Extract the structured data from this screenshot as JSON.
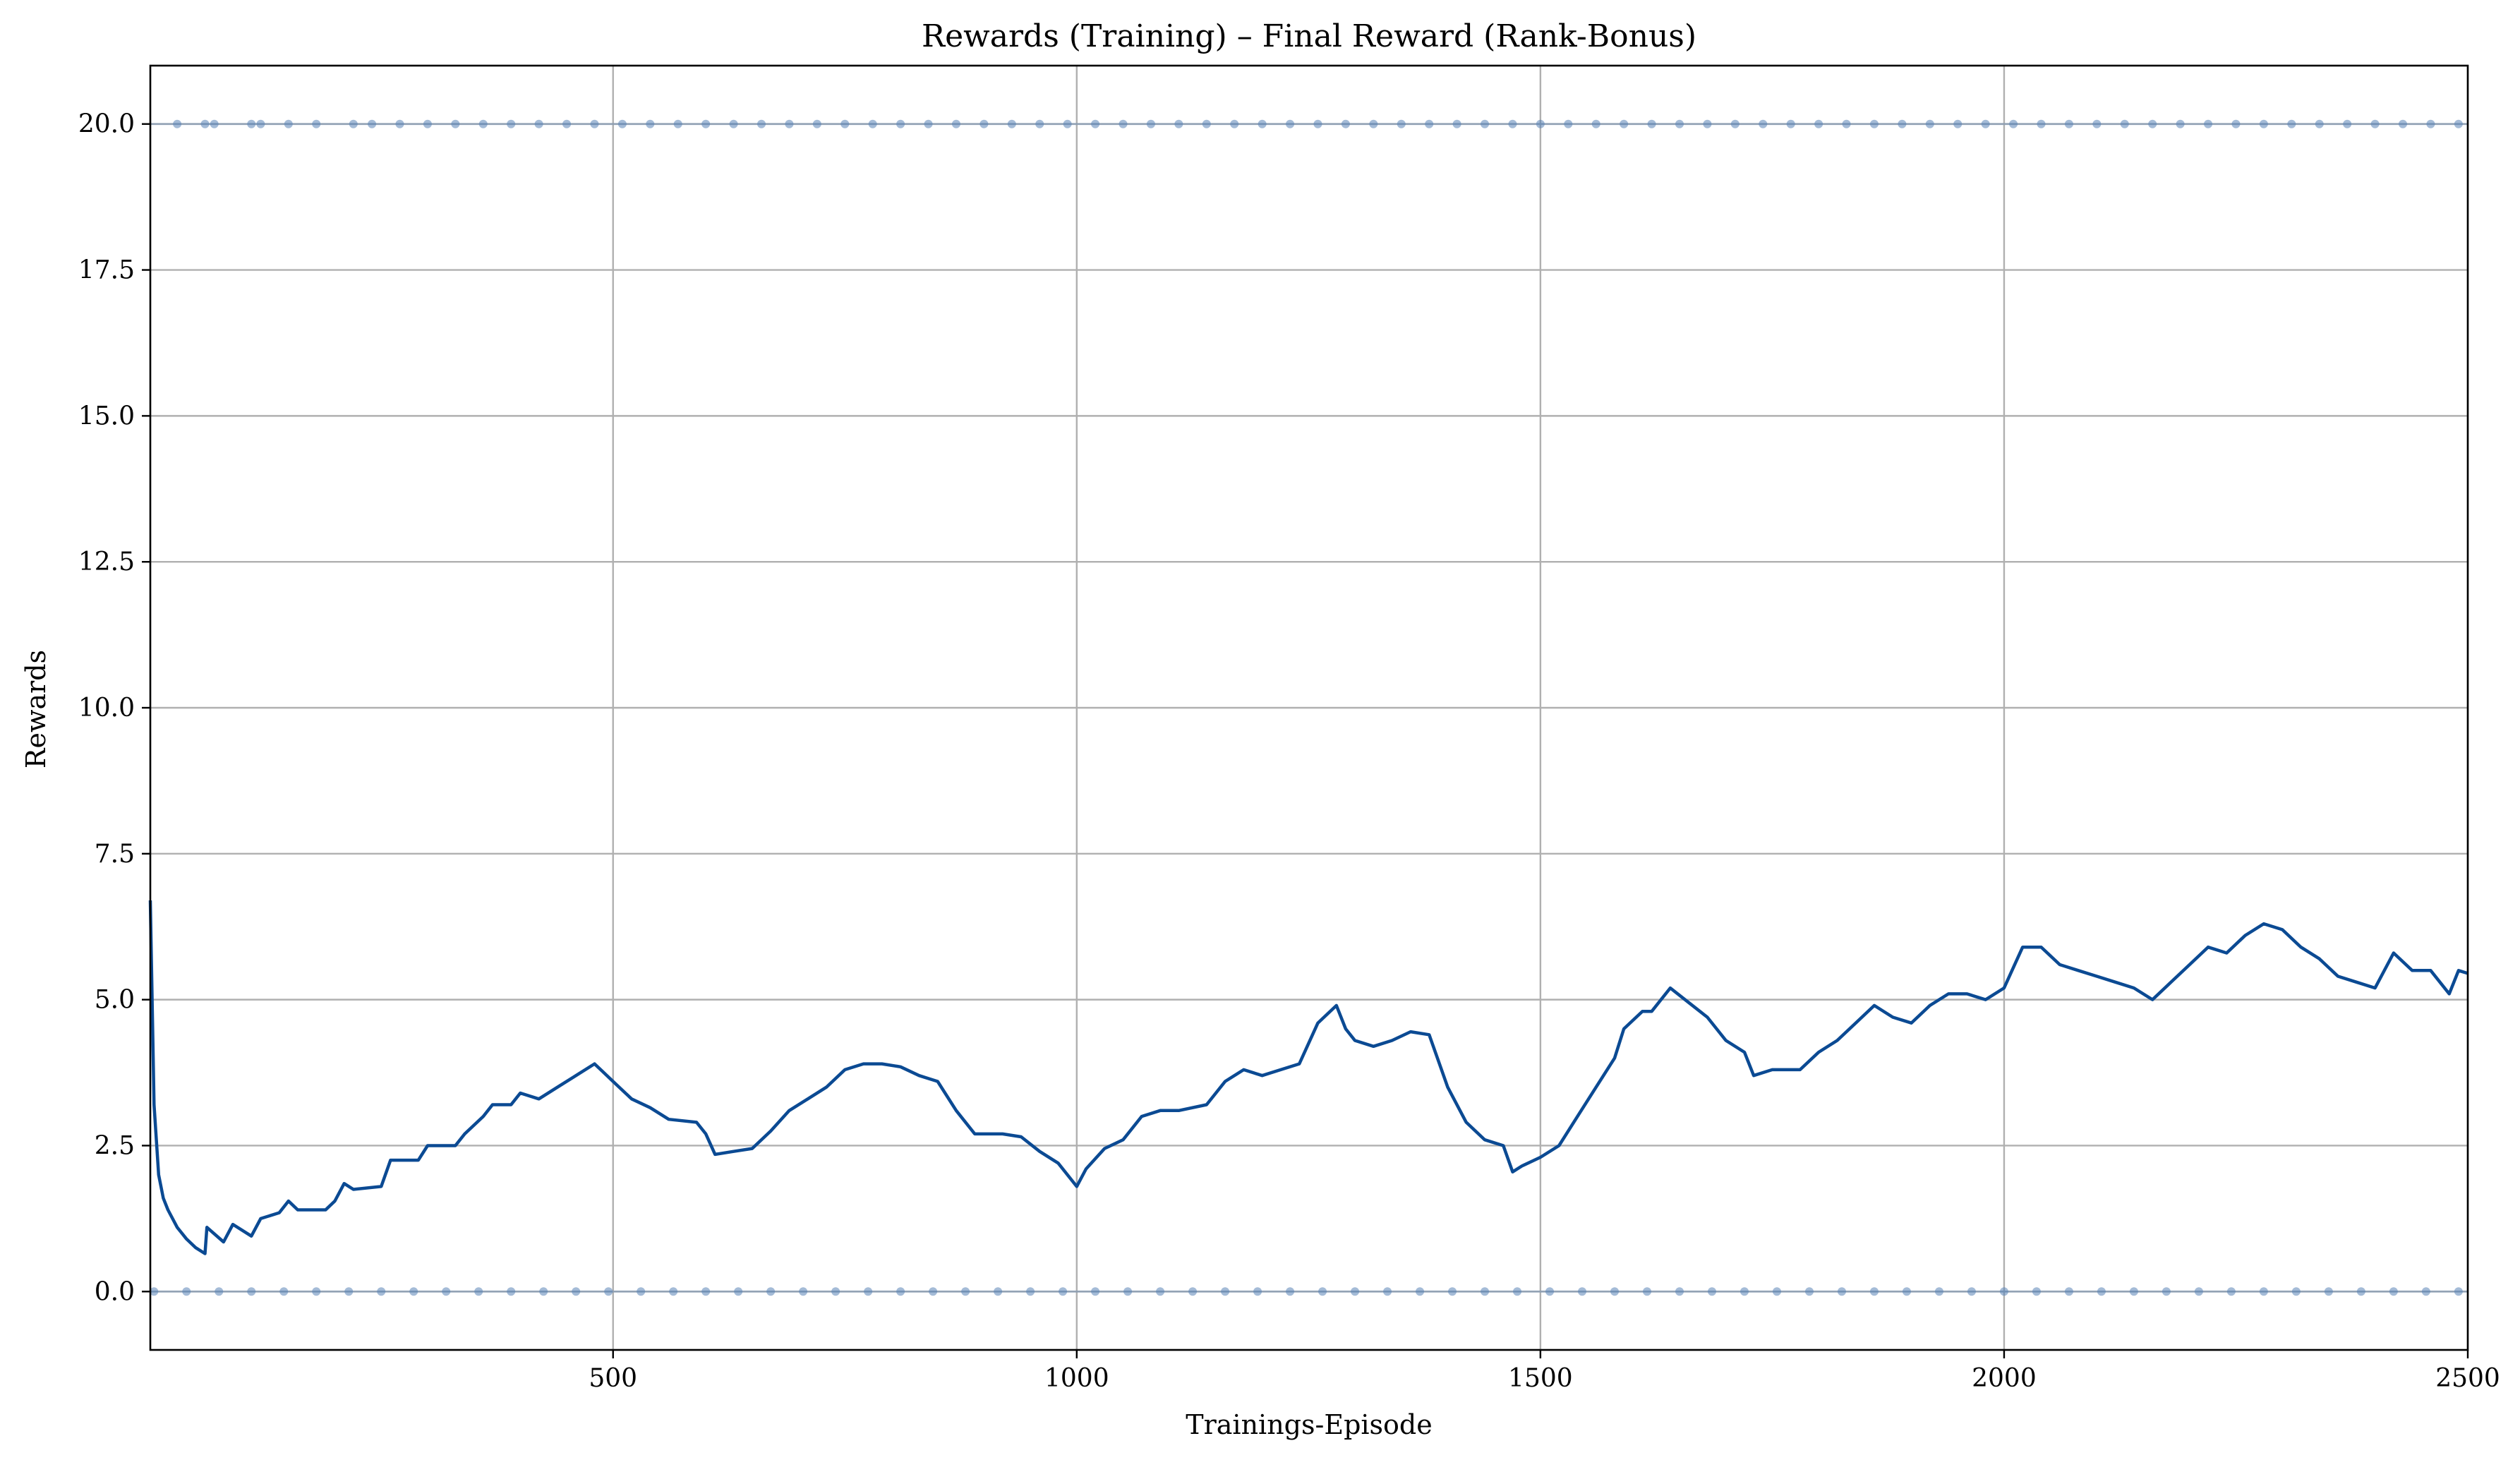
{
  "colors": {
    "line": "#0b4a93",
    "markers": "#5a83b6",
    "grid": "#b0b0b0"
  },
  "chart_data": {
    "type": "line",
    "title": "Rewards (Training) – Final Reward (Rank-Bonus)",
    "xlabel": "Trainings-Episode",
    "ylabel": "Rewards",
    "xlim": [
      1,
      2500
    ],
    "ylim": [
      -1,
      21
    ],
    "x_ticks": [
      500,
      1000,
      1500,
      2000,
      2500
    ],
    "x_tick_labels": [
      "500",
      "1000",
      "1500",
      "2000",
      "2500"
    ],
    "y_ticks": [
      0,
      2.5,
      5,
      7.5,
      10,
      12.5,
      15,
      17.5,
      20
    ],
    "y_tick_labels": [
      "0.0",
      "2.5",
      "5.0",
      "7.5",
      "10.0",
      "12.5",
      "15.0",
      "17.5",
      "20.0"
    ],
    "grid": true,
    "series": [
      {
        "style": "line",
        "points": [
          [
            1,
            6.7
          ],
          [
            5,
            3.2
          ],
          [
            10,
            2.0
          ],
          [
            15,
            1.6
          ],
          [
            20,
            1.4
          ],
          [
            30,
            1.1
          ],
          [
            40,
            0.9
          ],
          [
            50,
            0.75
          ],
          [
            60,
            0.65
          ],
          [
            62,
            1.1
          ],
          [
            80,
            0.85
          ],
          [
            90,
            1.15
          ],
          [
            110,
            0.95
          ],
          [
            120,
            1.25
          ],
          [
            140,
            1.35
          ],
          [
            150,
            1.55
          ],
          [
            160,
            1.4
          ],
          [
            190,
            1.4
          ],
          [
            200,
            1.55
          ],
          [
            210,
            1.85
          ],
          [
            220,
            1.75
          ],
          [
            250,
            1.8
          ],
          [
            260,
            2.25
          ],
          [
            290,
            2.25
          ],
          [
            300,
            2.5
          ],
          [
            330,
            2.5
          ],
          [
            340,
            2.7
          ],
          [
            360,
            3.0
          ],
          [
            370,
            3.2
          ],
          [
            390,
            3.2
          ],
          [
            400,
            3.4
          ],
          [
            420,
            3.3
          ],
          [
            440,
            3.5
          ],
          [
            460,
            3.7
          ],
          [
            480,
            3.9
          ],
          [
            490,
            3.75
          ],
          [
            500,
            3.6
          ],
          [
            520,
            3.3
          ],
          [
            540,
            3.15
          ],
          [
            560,
            2.95
          ],
          [
            590,
            2.9
          ],
          [
            600,
            2.7
          ],
          [
            610,
            2.35
          ],
          [
            630,
            2.4
          ],
          [
            650,
            2.45
          ],
          [
            670,
            2.75
          ],
          [
            690,
            3.1
          ],
          [
            710,
            3.3
          ],
          [
            730,
            3.5
          ],
          [
            750,
            3.8
          ],
          [
            770,
            3.9
          ],
          [
            790,
            3.9
          ],
          [
            810,
            3.85
          ],
          [
            830,
            3.7
          ],
          [
            850,
            3.6
          ],
          [
            870,
            3.1
          ],
          [
            890,
            2.7
          ],
          [
            920,
            2.7
          ],
          [
            940,
            2.65
          ],
          [
            960,
            2.4
          ],
          [
            980,
            2.2
          ],
          [
            1000,
            1.8
          ],
          [
            1010,
            2.1
          ],
          [
            1030,
            2.45
          ],
          [
            1050,
            2.6
          ],
          [
            1070,
            3.0
          ],
          [
            1090,
            3.1
          ],
          [
            1110,
            3.1
          ],
          [
            1140,
            3.2
          ],
          [
            1160,
            3.6
          ],
          [
            1180,
            3.8
          ],
          [
            1200,
            3.7
          ],
          [
            1220,
            3.8
          ],
          [
            1240,
            3.9
          ],
          [
            1260,
            4.6
          ],
          [
            1280,
            4.9
          ],
          [
            1290,
            4.5
          ],
          [
            1300,
            4.3
          ],
          [
            1320,
            4.2
          ],
          [
            1340,
            4.3
          ],
          [
            1360,
            4.45
          ],
          [
            1380,
            4.4
          ],
          [
            1400,
            3.5
          ],
          [
            1420,
            2.9
          ],
          [
            1440,
            2.6
          ],
          [
            1460,
            2.5
          ],
          [
            1470,
            2.05
          ],
          [
            1480,
            2.15
          ],
          [
            1500,
            2.3
          ],
          [
            1520,
            2.5
          ],
          [
            1540,
            3.0
          ],
          [
            1560,
            3.5
          ],
          [
            1580,
            4.0
          ],
          [
            1590,
            4.5
          ],
          [
            1610,
            4.8
          ],
          [
            1620,
            4.8
          ],
          [
            1640,
            5.2
          ],
          [
            1660,
            4.95
          ],
          [
            1680,
            4.7
          ],
          [
            1700,
            4.3
          ],
          [
            1720,
            4.1
          ],
          [
            1730,
            3.7
          ],
          [
            1750,
            3.8
          ],
          [
            1780,
            3.8
          ],
          [
            1800,
            4.1
          ],
          [
            1820,
            4.3
          ],
          [
            1840,
            4.6
          ],
          [
            1860,
            4.9
          ],
          [
            1880,
            4.7
          ],
          [
            1900,
            4.6
          ],
          [
            1920,
            4.9
          ],
          [
            1940,
            5.1
          ],
          [
            1960,
            5.1
          ],
          [
            1980,
            5.0
          ],
          [
            2000,
            5.2
          ],
          [
            2020,
            5.9
          ],
          [
            2040,
            5.9
          ],
          [
            2060,
            5.6
          ],
          [
            2080,
            5.5
          ],
          [
            2100,
            5.4
          ],
          [
            2120,
            5.3
          ],
          [
            2140,
            5.2
          ],
          [
            2160,
            5.0
          ],
          [
            2180,
            5.3
          ],
          [
            2200,
            5.6
          ],
          [
            2220,
            5.9
          ],
          [
            2240,
            5.8
          ],
          [
            2260,
            6.1
          ],
          [
            2280,
            6.3
          ],
          [
            2300,
            6.2
          ],
          [
            2320,
            5.9
          ],
          [
            2340,
            5.7
          ],
          [
            2360,
            5.4
          ],
          [
            2380,
            5.3
          ],
          [
            2400,
            5.2
          ],
          [
            2420,
            5.8
          ],
          [
            2440,
            5.5
          ],
          [
            2460,
            5.5
          ],
          [
            2480,
            5.1
          ],
          [
            2490,
            5.5
          ],
          [
            2500,
            5.45
          ]
        ]
      },
      {
        "style": "markers",
        "y": 20,
        "x": [
          30,
          60,
          70,
          110,
          120,
          150,
          180,
          220,
          240,
          270,
          300,
          330,
          360,
          390,
          420,
          450,
          480,
          510,
          540,
          570,
          600,
          630,
          660,
          690,
          720,
          750,
          780,
          810,
          840,
          870,
          900,
          930,
          960,
          990,
          1020,
          1050,
          1080,
          1110,
          1140,
          1170,
          1200,
          1230,
          1260,
          1290,
          1320,
          1350,
          1380,
          1410,
          1440,
          1470,
          1500,
          1530,
          1560,
          1590,
          1620,
          1650,
          1680,
          1710,
          1740,
          1770,
          1800,
          1830,
          1860,
          1890,
          1920,
          1950,
          1980,
          2010,
          2040,
          2070,
          2100,
          2130,
          2160,
          2190,
          2220,
          2250,
          2280,
          2310,
          2340,
          2370,
          2400,
          2430,
          2460,
          2490
        ]
      },
      {
        "style": "markers",
        "y": 0,
        "x": [
          5,
          40,
          75,
          110,
          145,
          180,
          215,
          250,
          285,
          320,
          355,
          390,
          425,
          460,
          495,
          530,
          565,
          600,
          635,
          670,
          705,
          740,
          775,
          810,
          845,
          880,
          915,
          950,
          985,
          1020,
          1055,
          1090,
          1125,
          1160,
          1195,
          1230,
          1265,
          1300,
          1335,
          1370,
          1405,
          1440,
          1475,
          1510,
          1545,
          1580,
          1615,
          1650,
          1685,
          1720,
          1755,
          1790,
          1825,
          1860,
          1895,
          1930,
          1965,
          2000,
          2035,
          2070,
          2105,
          2140,
          2175,
          2210,
          2245,
          2280,
          2315,
          2350,
          2385,
          2420,
          2455,
          2490
        ]
      }
    ]
  }
}
